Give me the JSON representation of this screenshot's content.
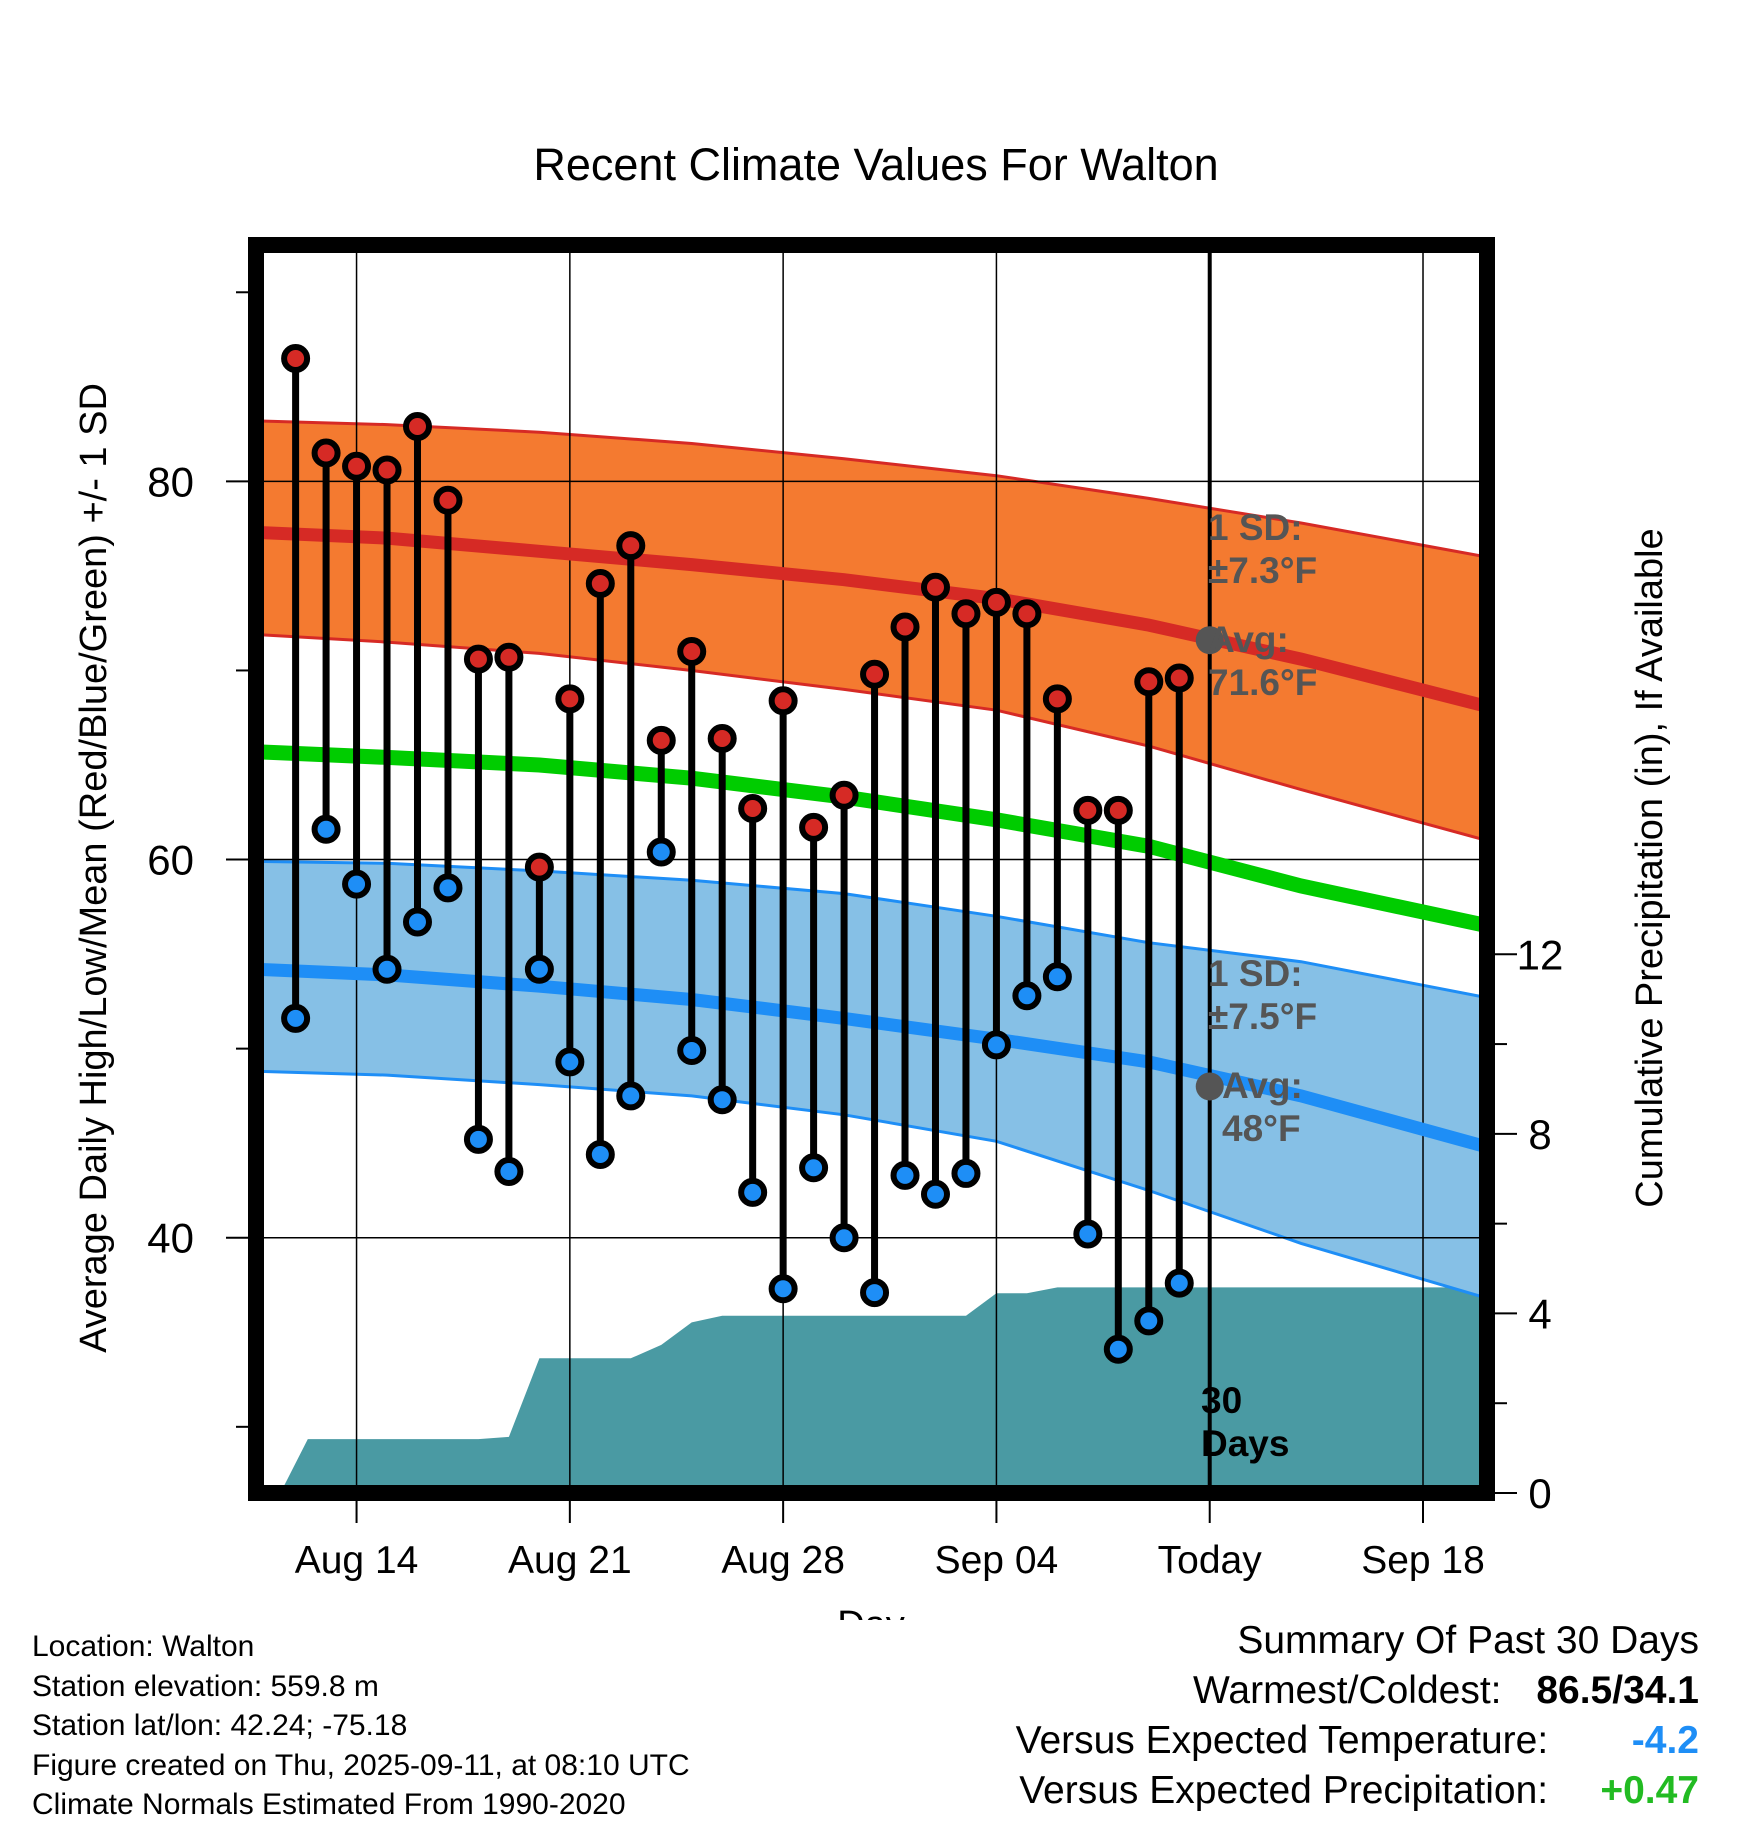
{
  "title": "Recent Climate Values For Walton",
  "xlabel": "Day",
  "ylabel_left": "Average Daily High/Low/Mean (Red/Blue/Green) +/- 1 SD",
  "ylabel_right": "Cumulative Precipitation (in), If Available",
  "annotations": {
    "high_sd": "1 SD:",
    "high_sd_val": "±7.3°F",
    "high_avg": "Avg:",
    "high_avg_val": "71.6°F",
    "low_sd": "1 SD:",
    "low_sd_val": "±7.5°F",
    "low_avg": "Avg:",
    "low_avg_val": "48°F",
    "days_num": "30",
    "days_word": "Days"
  },
  "footer": {
    "location": "Location: Walton",
    "elevation": "Station elevation: 559.8 m",
    "latlon": "Station lat/lon: 42.24; -75.18",
    "created": "Figure created on Thu, 2025-09-11, at 08:10 UTC",
    "normals": "Climate Normals Estimated From 1990-2020"
  },
  "summary": {
    "heading": "Summary Of Past 30 Days",
    "warm_cold_label": "Warmest/Coldest:",
    "warm_cold_value": "86.5/34.1",
    "temp_label": "Versus Expected Temperature:",
    "temp_value": "-4.2",
    "precip_label": "Versus Expected Precipitation:",
    "precip_value": "+0.47"
  },
  "colors": {
    "high_band": "#f47a30",
    "high_line": "#d62a25",
    "low_band": "#86c0e6",
    "low_line": "#1e8ef6",
    "mean_line": "#00cc00",
    "precip": "#4a9aa3",
    "high_dot": "#d62a25",
    "low_dot": "#1e8ef6",
    "annotation": "#555555",
    "temp_delta": "#1e8ef6",
    "precip_delta": "#22bb22"
  },
  "chart_data": {
    "type": "line",
    "x_ticks": [
      "Aug 14",
      "Aug 21",
      "Aug 28",
      "Sep 04",
      "Today",
      "Sep 18"
    ],
    "x_tick_days": [
      14,
      21,
      28,
      35,
      42,
      49
    ],
    "xlim": [
      10.7,
      51.1
    ],
    "today_day": 42,
    "ylim_left": [
      26.5,
      92.5
    ],
    "yticks_left": [
      40,
      60,
      80
    ],
    "ylim_right": [
      0,
      27.8
    ],
    "yticks_right": [
      0,
      4,
      8,
      12
    ],
    "daily": {
      "days": [
        12,
        13,
        14,
        15,
        16,
        17,
        18,
        19,
        20,
        21,
        22,
        23,
        24,
        25,
        26,
        27,
        28,
        29,
        30,
        31,
        32,
        33,
        34,
        35,
        36,
        37,
        38,
        39,
        40,
        41
      ],
      "high": [
        86.5,
        81.5,
        80.8,
        80.6,
        82.9,
        79.0,
        70.6,
        70.7,
        59.6,
        68.5,
        74.6,
        76.6,
        66.3,
        71.0,
        66.4,
        62.7,
        68.4,
        61.7,
        63.4,
        69.8,
        72.3,
        74.4,
        73.0,
        73.6,
        73.0,
        68.5,
        62.6,
        62.6,
        69.4,
        69.6
      ],
      "low": [
        51.6,
        61.6,
        58.7,
        54.2,
        56.7,
        58.5,
        45.2,
        43.5,
        54.2,
        49.3,
        44.4,
        47.5,
        60.4,
        49.9,
        47.3,
        42.4,
        37.3,
        43.7,
        40.0,
        37.1,
        43.3,
        42.3,
        43.4,
        50.2,
        52.8,
        53.8,
        40.2,
        34.1,
        35.6,
        37.6
      ]
    },
    "normals": {
      "days": [
        10.7,
        15,
        20,
        25,
        30,
        35,
        40,
        45,
        51.1
      ],
      "high_mean": [
        77.3,
        77.0,
        76.3,
        75.6,
        74.8,
        73.8,
        72.4,
        70.6,
        68.1
      ],
      "high_upper": [
        83.2,
        83.0,
        82.6,
        82.0,
        81.2,
        80.3,
        79.1,
        77.8,
        76.0
      ],
      "high_lower": [
        71.9,
        71.5,
        70.9,
        70.0,
        69.0,
        67.9,
        66.0,
        63.7,
        61.0
      ],
      "low_mean": [
        54.2,
        53.9,
        53.3,
        52.6,
        51.6,
        50.5,
        49.3,
        47.5,
        44.8
      ],
      "low_upper": [
        59.9,
        59.8,
        59.4,
        58.9,
        58.2,
        57.0,
        55.6,
        54.6,
        52.7
      ],
      "low_lower": [
        48.8,
        48.6,
        48.1,
        47.5,
        46.5,
        45.1,
        42.5,
        39.7,
        36.8
      ],
      "mean": [
        65.7,
        65.4,
        65.0,
        64.3,
        63.3,
        62.1,
        60.7,
        58.6,
        56.5
      ]
    },
    "precip": {
      "days": [
        11.5,
        12.4,
        13.0,
        18.0,
        19.0,
        20.0,
        21.0,
        22.0,
        23.0,
        24.0,
        25.0,
        26.0,
        27.0,
        28.0,
        29.0,
        30.0,
        31.0,
        32.0,
        33.0,
        34.0,
        35.0,
        36.0,
        37.0,
        38.0,
        39.0,
        40.0,
        41.0,
        42.0,
        51.1
      ],
      "values": [
        0.0,
        1.2,
        1.2,
        1.2,
        1.25,
        3.0,
        3.0,
        3.0,
        3.0,
        3.3,
        3.8,
        3.95,
        3.95,
        3.95,
        3.95,
        3.95,
        3.95,
        3.95,
        3.95,
        3.95,
        4.45,
        4.45,
        4.58,
        4.58,
        4.58,
        4.58,
        4.58,
        4.58,
        4.58
      ]
    }
  }
}
